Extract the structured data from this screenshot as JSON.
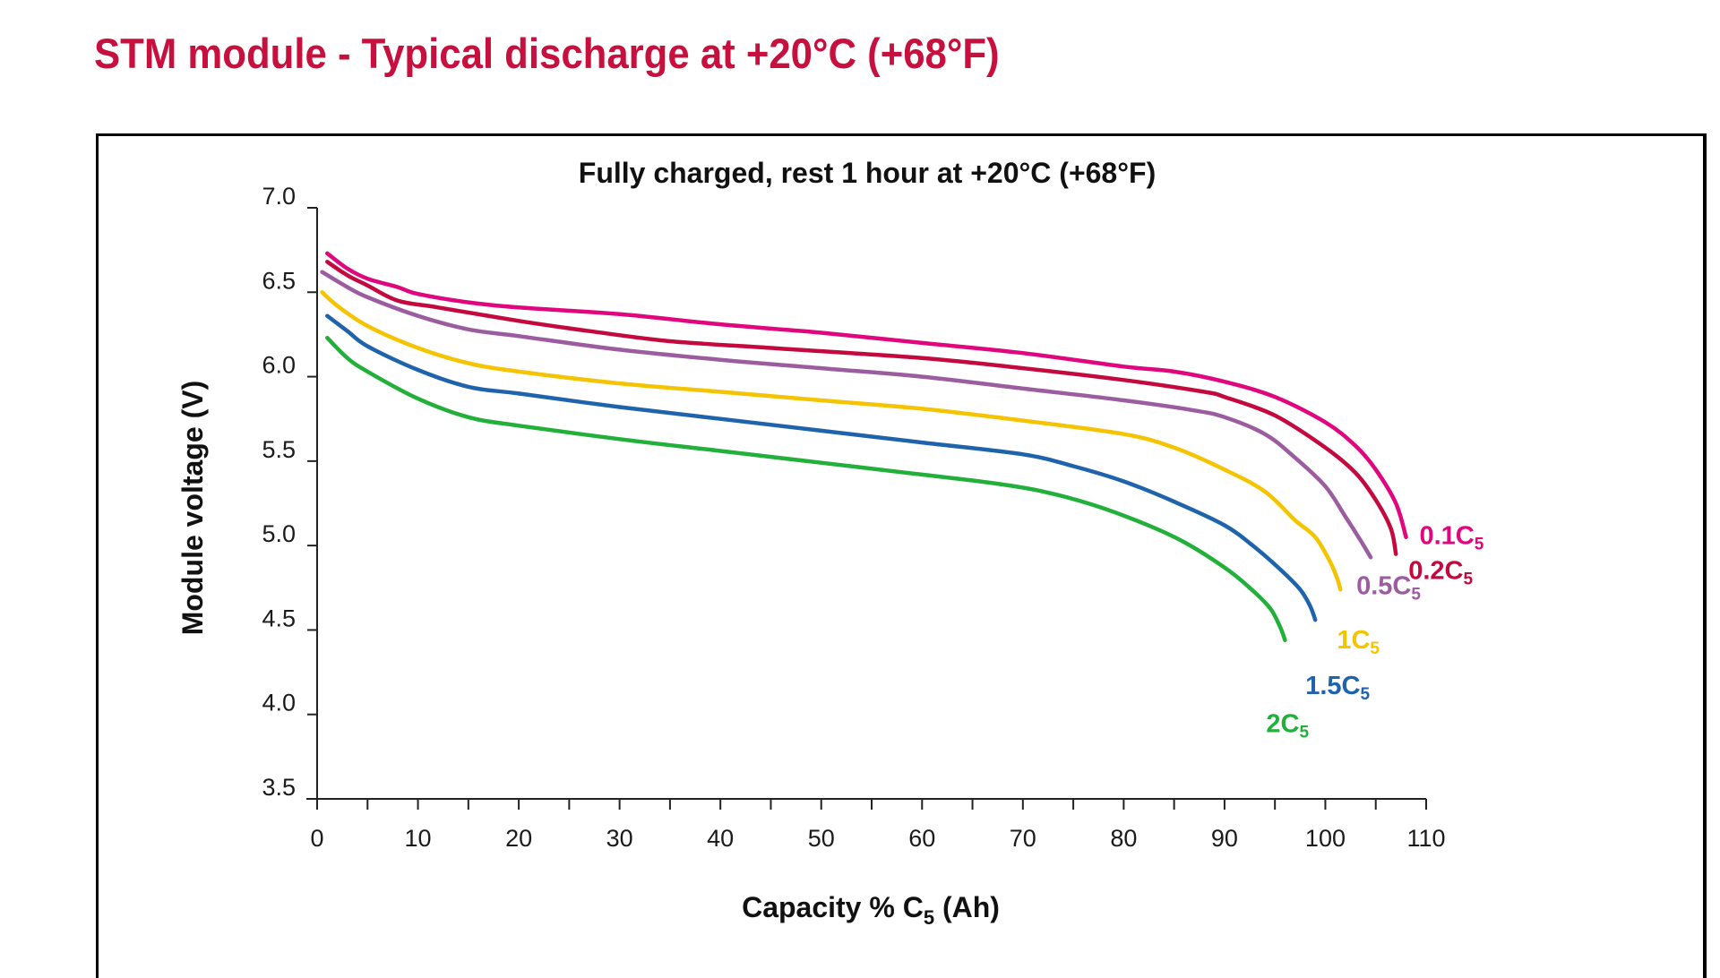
{
  "page": {
    "title": "STM module - Typical discharge at +20°C (+68°F)",
    "title_color": "#c8103e"
  },
  "chart_data": {
    "type": "line",
    "title": "Fully charged, rest 1 hour at +20°C (+68°F)",
    "xlabel_main": "Capacity % C",
    "xlabel_sub": "5",
    "xlabel_tail": " (Ah)",
    "ylabel": "Module voltage (V)",
    "xlim": [
      0,
      110
    ],
    "ylim": [
      3.5,
      7.0
    ],
    "x_ticks": [
      0,
      10,
      20,
      30,
      40,
      50,
      60,
      70,
      80,
      90,
      100,
      110
    ],
    "x_minor_step": 5,
    "y_ticks": [
      "3.5",
      "4.0",
      "4.5",
      "5.0",
      "5.5",
      "6.0",
      "6.5",
      "7.0"
    ],
    "grid": false,
    "legend": "inline-at-curve-ends",
    "series": [
      {
        "name": "0.1C5",
        "label_main": "0.1C",
        "label_sub": "5",
        "color": "#e0067e",
        "points": [
          [
            1,
            6.73
          ],
          [
            3,
            6.64
          ],
          [
            5,
            6.58
          ],
          [
            8,
            6.53
          ],
          [
            10,
            6.49
          ],
          [
            15,
            6.44
          ],
          [
            20,
            6.41
          ],
          [
            30,
            6.37
          ],
          [
            40,
            6.31
          ],
          [
            50,
            6.26
          ],
          [
            60,
            6.2
          ],
          [
            70,
            6.14
          ],
          [
            80,
            6.06
          ],
          [
            85,
            6.03
          ],
          [
            90,
            5.97
          ],
          [
            95,
            5.88
          ],
          [
            100,
            5.73
          ],
          [
            103,
            5.59
          ],
          [
            105,
            5.45
          ],
          [
            107,
            5.25
          ],
          [
            108,
            5.05
          ]
        ]
      },
      {
        "name": "0.2C5",
        "label_main": "0.2C",
        "label_sub": "5",
        "color": "#c4093f",
        "points": [
          [
            1,
            6.68
          ],
          [
            3,
            6.6
          ],
          [
            5,
            6.54
          ],
          [
            8,
            6.45
          ],
          [
            12,
            6.41
          ],
          [
            20,
            6.33
          ],
          [
            27,
            6.27
          ],
          [
            35,
            6.21
          ],
          [
            45,
            6.17
          ],
          [
            60,
            6.11
          ],
          [
            70,
            6.05
          ],
          [
            80,
            5.98
          ],
          [
            88,
            5.91
          ],
          [
            90,
            5.88
          ],
          [
            95,
            5.77
          ],
          [
            100,
            5.58
          ],
          [
            103,
            5.43
          ],
          [
            105,
            5.27
          ],
          [
            106.5,
            5.1
          ],
          [
            107,
            4.95
          ]
        ]
      },
      {
        "name": "0.5C5",
        "label_main": "0.5C",
        "label_sub": "5",
        "color": "#9b5da0",
        "points": [
          [
            0.5,
            6.62
          ],
          [
            3,
            6.53
          ],
          [
            5,
            6.47
          ],
          [
            10,
            6.36
          ],
          [
            15,
            6.28
          ],
          [
            20,
            6.24
          ],
          [
            30,
            6.16
          ],
          [
            40,
            6.1
          ],
          [
            50,
            6.05
          ],
          [
            60,
            6.0
          ],
          [
            70,
            5.93
          ],
          [
            80,
            5.86
          ],
          [
            87,
            5.8
          ],
          [
            90,
            5.76
          ],
          [
            94,
            5.66
          ],
          [
            97,
            5.52
          ],
          [
            100,
            5.35
          ],
          [
            102,
            5.17
          ],
          [
            103.5,
            5.03
          ],
          [
            104.5,
            4.93
          ]
        ]
      },
      {
        "name": "1C5",
        "label_main": "1C",
        "label_sub": "5",
        "color": "#f5c400",
        "points": [
          [
            0.5,
            6.5
          ],
          [
            2,
            6.42
          ],
          [
            5,
            6.3
          ],
          [
            10,
            6.17
          ],
          [
            15,
            6.08
          ],
          [
            20,
            6.03
          ],
          [
            30,
            5.96
          ],
          [
            40,
            5.91
          ],
          [
            50,
            5.86
          ],
          [
            60,
            5.81
          ],
          [
            70,
            5.74
          ],
          [
            80,
            5.66
          ],
          [
            85,
            5.58
          ],
          [
            90,
            5.45
          ],
          [
            94,
            5.32
          ],
          [
            97,
            5.15
          ],
          [
            99,
            5.05
          ],
          [
            100.5,
            4.9
          ],
          [
            101.2,
            4.8
          ],
          [
            101.5,
            4.74
          ]
        ]
      },
      {
        "name": "1.5C5",
        "label_main": "1.5C",
        "label_sub": "5",
        "color": "#1f63ad",
        "points": [
          [
            1,
            6.36
          ],
          [
            3,
            6.27
          ],
          [
            5,
            6.18
          ],
          [
            10,
            6.04
          ],
          [
            15,
            5.94
          ],
          [
            20,
            5.9
          ],
          [
            30,
            5.82
          ],
          [
            40,
            5.75
          ],
          [
            50,
            5.68
          ],
          [
            60,
            5.61
          ],
          [
            70,
            5.54
          ],
          [
            75,
            5.47
          ],
          [
            80,
            5.38
          ],
          [
            85,
            5.26
          ],
          [
            90,
            5.12
          ],
          [
            93,
            4.99
          ],
          [
            95.5,
            4.86
          ],
          [
            97.5,
            4.74
          ],
          [
            98.5,
            4.64
          ],
          [
            99,
            4.56
          ]
        ]
      },
      {
        "name": "2C5",
        "label_main": "2C",
        "label_sub": "5",
        "color": "#22b03a",
        "points": [
          [
            1,
            6.23
          ],
          [
            3,
            6.11
          ],
          [
            5,
            6.03
          ],
          [
            10,
            5.87
          ],
          [
            15,
            5.76
          ],
          [
            20,
            5.71
          ],
          [
            30,
            5.63
          ],
          [
            40,
            5.56
          ],
          [
            50,
            5.49
          ],
          [
            60,
            5.42
          ],
          [
            67,
            5.37
          ],
          [
            72,
            5.32
          ],
          [
            77,
            5.24
          ],
          [
            82,
            5.13
          ],
          [
            86,
            5.02
          ],
          [
            90,
            4.87
          ],
          [
            92.5,
            4.75
          ],
          [
            94.5,
            4.63
          ],
          [
            95.5,
            4.52
          ],
          [
            96,
            4.44
          ]
        ]
      }
    ]
  }
}
